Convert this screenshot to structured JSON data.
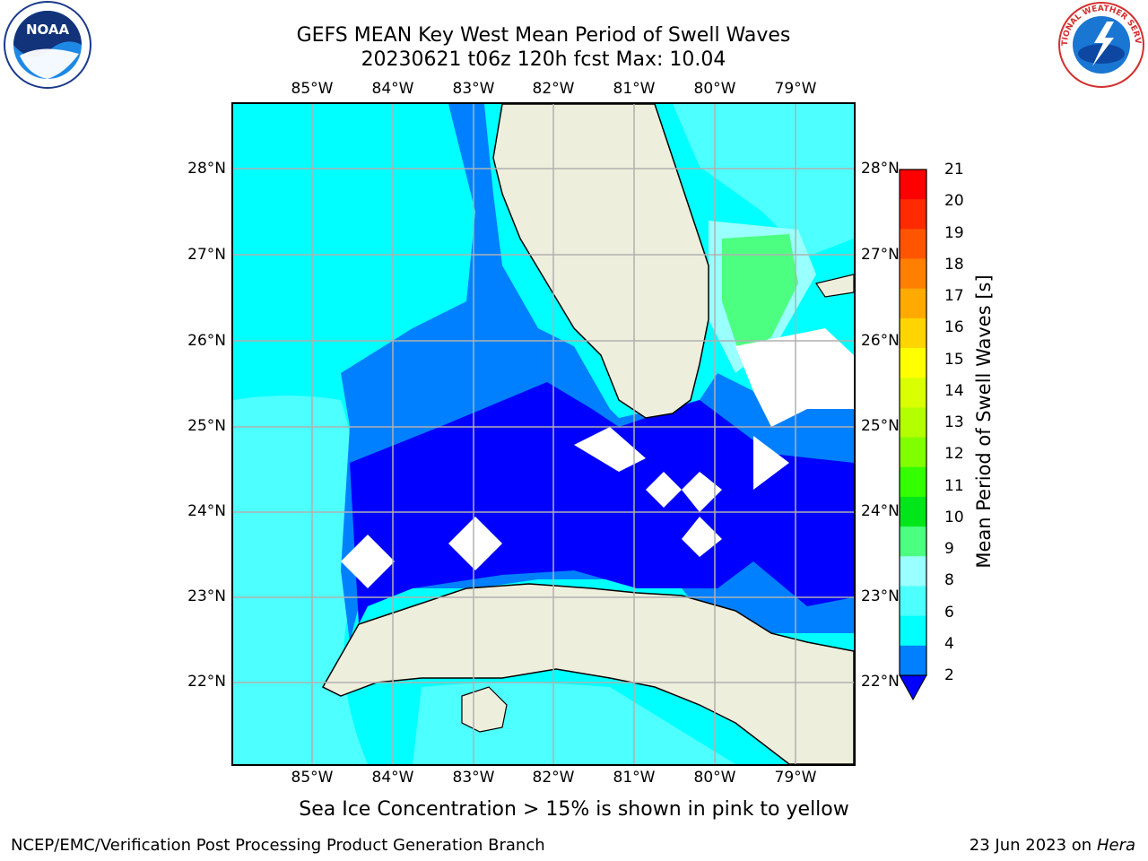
{
  "title": {
    "line1": "GEFS MEAN Key West Mean Period of Swell Waves",
    "line2": "20230621 t06z 120h fcst   Max: 10.04"
  },
  "logos": {
    "left": {
      "name": "noaa-logo",
      "text": "NOAA"
    },
    "right": {
      "name": "nws-logo",
      "text": "NATIONAL WEATHER SERVICE"
    }
  },
  "map": {
    "lon_ticks": [
      "85°W",
      "84°W",
      "83°W",
      "82°W",
      "81°W",
      "80°W",
      "79°W"
    ],
    "lat_ticks": [
      "28°N",
      "27°N",
      "26°N",
      "25°N",
      "24°N",
      "23°N",
      "22°N"
    ],
    "lon_range": [
      -86.0,
      -78.3
    ],
    "lat_range": [
      21.0,
      28.8
    ],
    "grid": true
  },
  "colorbar": {
    "title": "Mean Period of Swell Waves [s]",
    "labels": [
      "21",
      "20",
      "19",
      "18",
      "17",
      "16",
      "15",
      "14",
      "13",
      "12",
      "11",
      "10",
      "9",
      "8",
      "6",
      "4",
      "2"
    ],
    "colors": [
      "#ff0000",
      "#ff2a00",
      "#ff5500",
      "#ff8000",
      "#ffaa00",
      "#ffd400",
      "#ffff00",
      "#d9ff00",
      "#b3ff00",
      "#80ff00",
      "#33ff00",
      "#00e61a",
      "#4dff80",
      "#99ffff",
      "#4dffff",
      "#00ffff",
      "#0080ff"
    ],
    "extend_color": "#0000ff"
  },
  "subtitle": "Sea Ice Concentration > 15% is shown in pink to yellow",
  "footer": {
    "left": "NCEP/EMC/Verification Post Processing Product Generation Branch",
    "right_prefix": "23 Jun 2023 on",
    "right_italic": "Hera"
  }
}
